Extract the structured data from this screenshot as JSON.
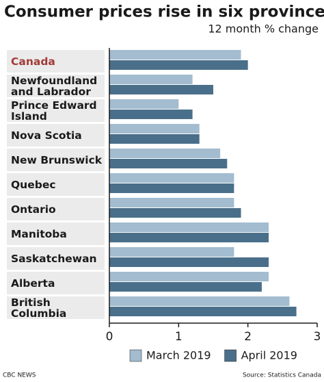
{
  "chart_data": {
    "type": "hbar",
    "title": "Consumer prices rise in six provinces",
    "subtitle": "12 month % change",
    "categories": [
      "Canada",
      "Newfoundland\nand Labrador",
      "Prince Edward\nIsland",
      "Nova Scotia",
      "New Brunswick",
      "Quebec",
      "Ontario",
      "Manitoba",
      "Saskatchewan",
      "Alberta",
      "British Columbia"
    ],
    "label_colors": [
      "#a23b37",
      "#1a1a1a",
      "#1a1a1a",
      "#1a1a1a",
      "#1a1a1a",
      "#1a1a1a",
      "#1a1a1a",
      "#1a1a1a",
      "#1a1a1a",
      "#1a1a1a",
      "#1a1a1a"
    ],
    "series": [
      {
        "name": "March 2019",
        "color": "#a3bccf",
        "values": [
          1.9,
          1.2,
          1.0,
          1.3,
          1.6,
          1.8,
          1.8,
          2.3,
          1.8,
          2.3,
          2.6
        ]
      },
      {
        "name": "April 2019",
        "color": "#4a6f8a",
        "values": [
          2.0,
          1.5,
          1.2,
          1.3,
          1.7,
          1.8,
          1.9,
          2.3,
          2.3,
          2.2,
          2.7
        ]
      }
    ],
    "xlim": [
      0,
      3
    ],
    "xticks": [
      0,
      1,
      2,
      3
    ],
    "legend": "bottom",
    "footer_left": "CBC NEWS",
    "footer_right": "Source: Statistics Canada"
  }
}
